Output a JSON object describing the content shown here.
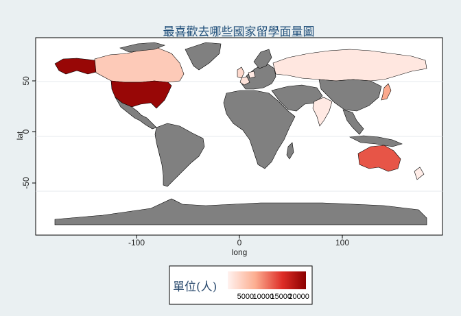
{
  "chart_data": {
    "type": "choropleth",
    "title": "最喜歡去哪些國家留學面量圖",
    "xlabel": "long",
    "ylabel": "lat",
    "x_ticks": [
      -100,
      0,
      100
    ],
    "y_ticks": [
      -50,
      0,
      50
    ],
    "xlim": [
      -180,
      180
    ],
    "ylim": [
      -90,
      90
    ],
    "legend": {
      "title": "單位(人)",
      "ticks": [
        5000,
        10000,
        15000,
        20000
      ],
      "tick_labels": [
        "5000",
        "10000",
        "15000",
        "20000"
      ],
      "range": [
        0,
        22000
      ],
      "color_low": "#fff2ef",
      "color_high": "#8b0000"
    },
    "default_fill": "#808080",
    "countries": [
      {
        "name": "United States",
        "value": 21000
      },
      {
        "name": "Alaska",
        "value": 21000
      },
      {
        "name": "Canada",
        "value": 4500
      },
      {
        "name": "Australia",
        "value": 13000
      },
      {
        "name": "Russia",
        "value": 1200
      },
      {
        "name": "United Kingdom",
        "value": 2800
      },
      {
        "name": "France",
        "value": 1800
      },
      {
        "name": "Germany",
        "value": 1000
      },
      {
        "name": "Japan",
        "value": 8000
      },
      {
        "name": "India",
        "value": 1000
      },
      {
        "name": "New Zealand",
        "value": 600
      }
    ]
  }
}
